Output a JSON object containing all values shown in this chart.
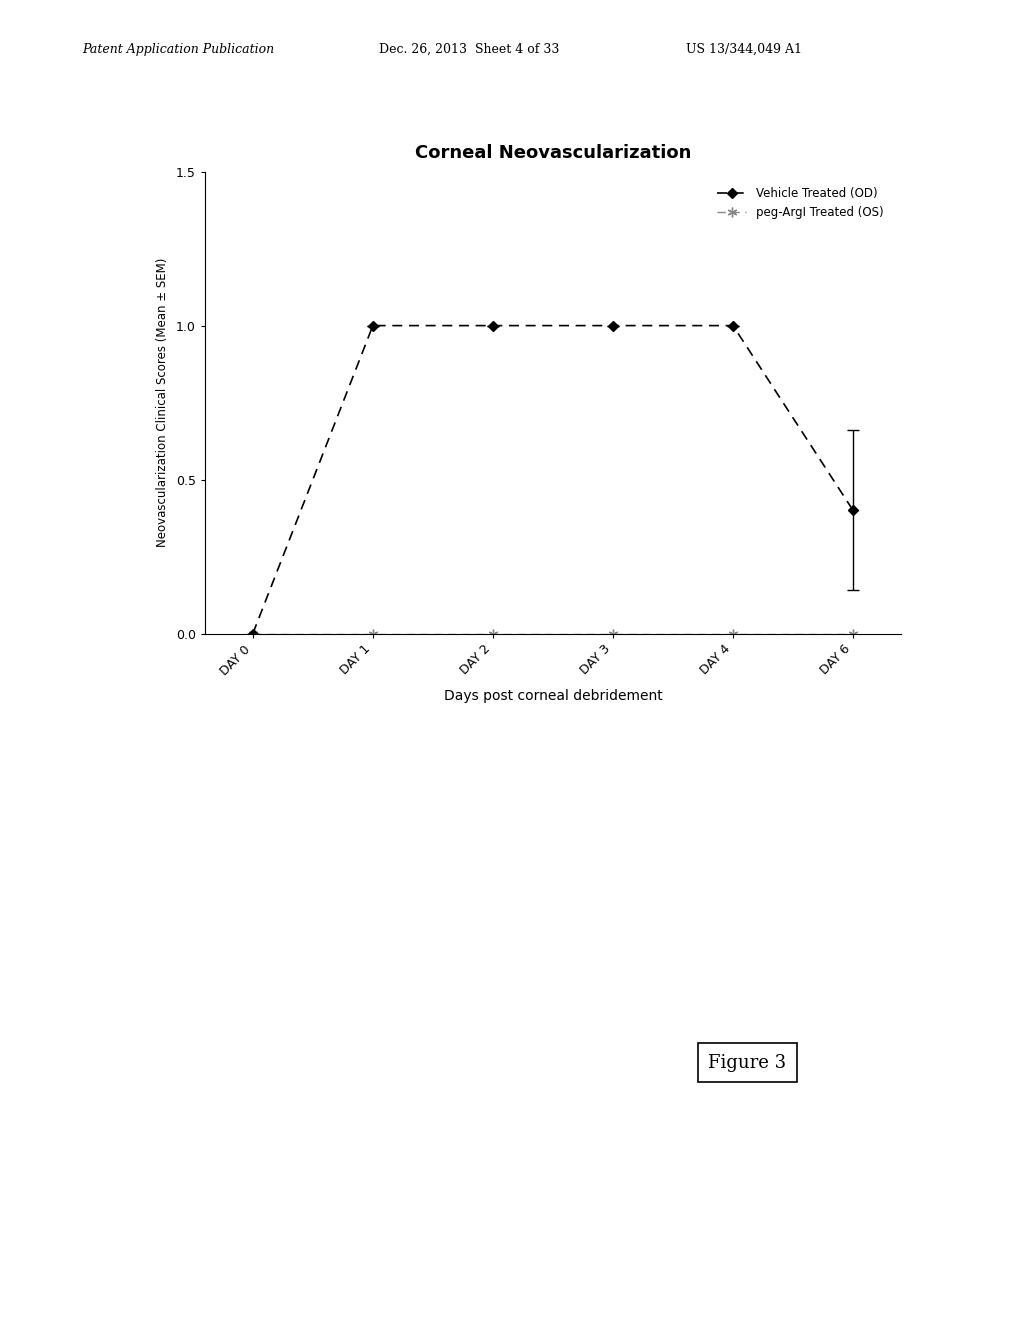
{
  "title": "Corneal Neovascularization",
  "xlabel": "Days post corneal debridement",
  "ylabel": "Neovascularization Clinical Scores (Mean ± SEM)",
  "x_days": [
    0,
    1,
    2,
    3,
    4,
    6
  ],
  "x_tick_labels": [
    "DAY 0",
    "DAY 1",
    "DAY 2",
    "DAY 3",
    "DAY 4",
    "DAY 6"
  ],
  "vehicle_y": [
    0.0,
    1.0,
    1.0,
    1.0,
    1.0,
    0.4
  ],
  "vehicle_yerr_upper": [
    0.0,
    0.0,
    0.0,
    0.0,
    0.0,
    0.26
  ],
  "vehicle_yerr_lower": [
    0.0,
    0.0,
    0.0,
    0.0,
    0.0,
    0.26
  ],
  "peg_y": [
    0.0,
    0.0,
    0.0,
    0.0,
    0.0,
    0.0
  ],
  "ylim": [
    0.0,
    1.5
  ],
  "yticks": [
    0.0,
    0.5,
    1.0,
    1.5
  ],
  "legend_vehicle": "Vehicle Treated (OD)",
  "legend_peg": "peg-ArgI Treated (OS)",
  "figure_label": "Figure 3",
  "header_left": "Patent Application Publication",
  "header_mid": "Dec. 26, 2013  Sheet 4 of 33",
  "header_right": "US 13/344,049 A1",
  "background_color": "#ffffff"
}
